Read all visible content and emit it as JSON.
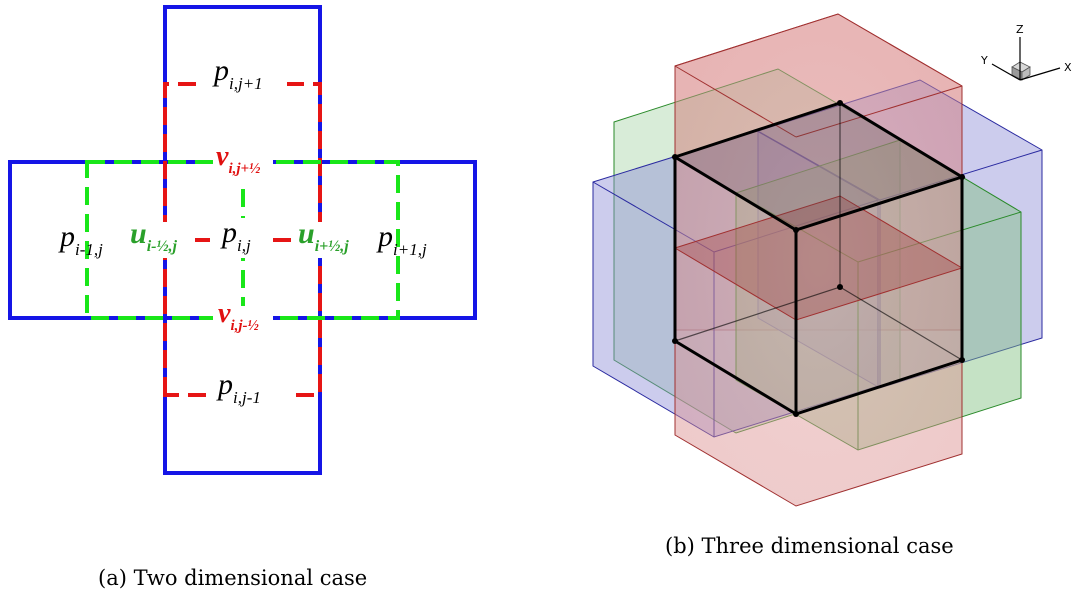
{
  "panel_a": {
    "caption": "(a) Two dimensional case",
    "labels": {
      "p_top": {
        "sym": "p",
        "sub": "i,j+1"
      },
      "p_left": {
        "sym": "p",
        "sub": "i-1,j"
      },
      "p_center": {
        "sym": "p",
        "sub": "i,j"
      },
      "p_right": {
        "sym": "p",
        "sub": "i+1,j"
      },
      "p_bottom": {
        "sym": "p",
        "sub": "i,j-1"
      },
      "u_left": {
        "sym": "u",
        "sub": "i-½,j"
      },
      "u_right": {
        "sym": "u",
        "sub": "i+½,j"
      },
      "v_top": {
        "sym": "v",
        "sub": "i,j+½"
      },
      "v_bottom": {
        "sym": "v",
        "sub": "i,j-½"
      }
    },
    "colors": {
      "pressure_cells": "#1515e6",
      "u_cells": "#19e619",
      "v_cells": "#e61515",
      "u_label": "#2aa02a",
      "v_label": "#e01010"
    }
  },
  "panel_b": {
    "caption": "(b) Three dimensional case",
    "axes": {
      "z": "Z",
      "y": "Y",
      "x": "X"
    },
    "colors": {
      "red_volumes": "#c44a4a",
      "green_volumes": "#3a9a3a",
      "blue_volumes": "#4a4ac8",
      "center_cell": "#000000"
    }
  }
}
